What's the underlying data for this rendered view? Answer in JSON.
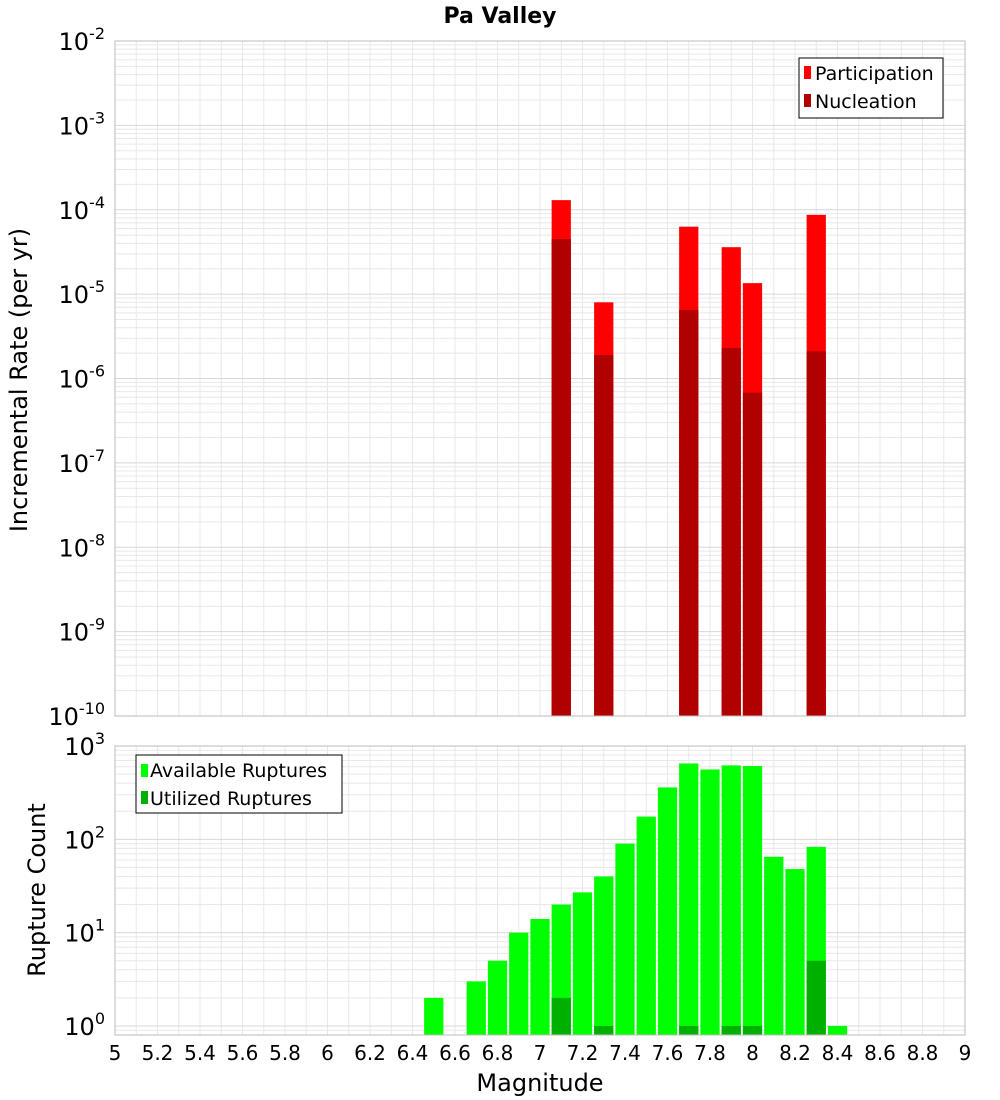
{
  "chart_data": [
    {
      "type": "bar",
      "title": "Pa Valley",
      "xlabel": "",
      "ylabel": "Incremental Rate (per yr)",
      "log_y": true,
      "xlim": [
        5,
        9
      ],
      "ylim": [
        1e-10,
        0.01
      ],
      "ytick_exponents": [
        -10,
        -9,
        -8,
        -7,
        -6,
        -5,
        -4,
        -3,
        -2
      ],
      "legend_position": "top-right",
      "bin_width": 0.1,
      "series": [
        {
          "name": "Participation",
          "color": "#ff0000",
          "x": [
            7.1,
            7.3,
            7.7,
            7.9,
            8.0,
            8.3
          ],
          "values": [
            0.00013,
            8e-06,
            6.3e-05,
            3.6e-05,
            1.35e-05,
            8.7e-05
          ]
        },
        {
          "name": "Nucleation",
          "color": "#b00000",
          "x": [
            7.1,
            7.3,
            7.7,
            7.9,
            8.0,
            8.3
          ],
          "values": [
            4.5e-05,
            1.9e-06,
            6.5e-06,
            2.3e-06,
            6.8e-07,
            2.1e-06
          ]
        }
      ]
    },
    {
      "type": "bar",
      "title": "",
      "xlabel": "Magnitude",
      "ylabel": "Rupture Count",
      "log_y": true,
      "xlim": [
        5,
        9
      ],
      "ylim": [
        0.8,
        1000
      ],
      "ytick_exponents": [
        0,
        1,
        2,
        3
      ],
      "xticks": [
        "5",
        "5.2",
        "5.4",
        "5.6",
        "5.8",
        "6",
        "6.2",
        "6.4",
        "6.6",
        "6.8",
        "7",
        "7.2",
        "7.4",
        "7.6",
        "7.8",
        "8",
        "8.2",
        "8.4",
        "8.6",
        "8.8",
        "9"
      ],
      "legend_position": "top-left",
      "bin_width": 0.1,
      "series": [
        {
          "name": "Available Ruptures",
          "color": "#00ff00",
          "x": [
            6.5,
            6.7,
            6.8,
            6.9,
            7.0,
            7.1,
            7.2,
            7.3,
            7.4,
            7.5,
            7.6,
            7.7,
            7.8,
            7.9,
            8.0,
            8.1,
            8.2,
            8.3,
            8.4
          ],
          "values": [
            2,
            3,
            5,
            10,
            14,
            20,
            27,
            40,
            90,
            175,
            360,
            650,
            560,
            620,
            610,
            65,
            48,
            83,
            1
          ]
        },
        {
          "name": "Utilized Ruptures",
          "color": "#00b000",
          "x": [
            7.1,
            7.3,
            7.7,
            7.9,
            8.0,
            8.3
          ],
          "values": [
            2,
            1,
            1,
            1,
            1,
            5
          ]
        }
      ]
    }
  ]
}
